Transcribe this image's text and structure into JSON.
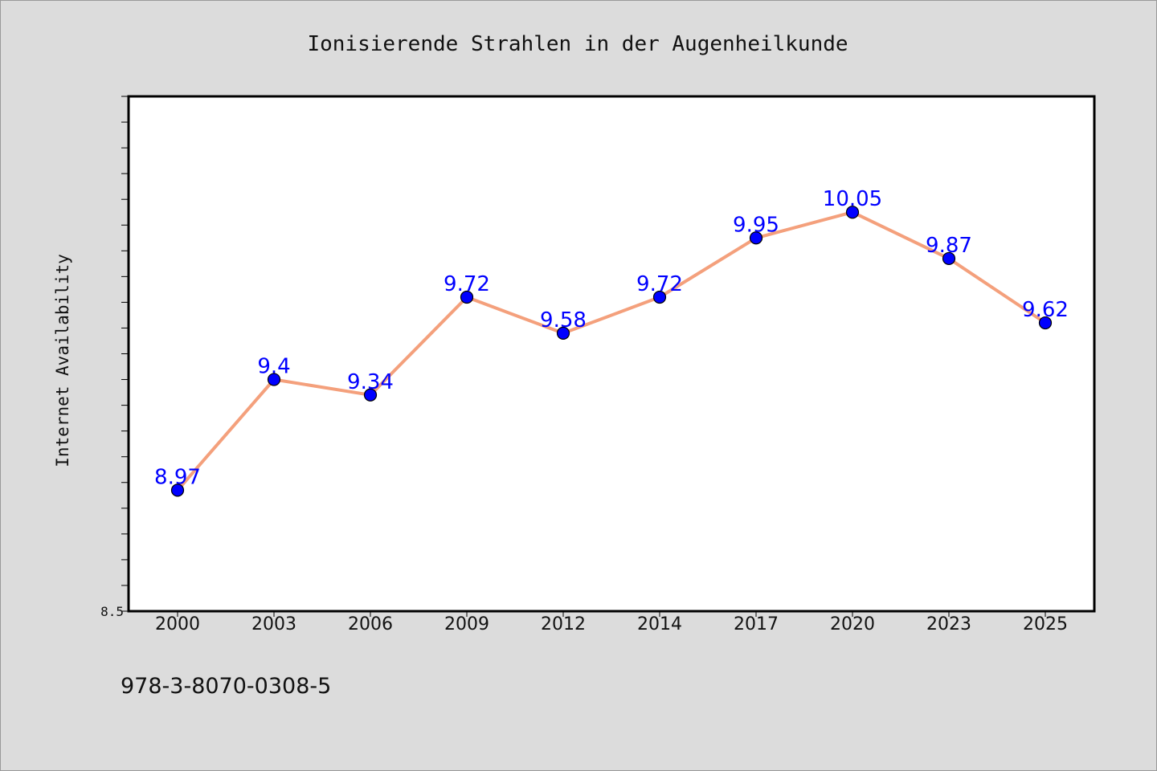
{
  "chart_data": {
    "type": "line",
    "title": "Ionisierende Strahlen in der Augenheilkunde",
    "xlabel": "",
    "ylabel": "Internet Availability",
    "categories": [
      "2000",
      "2003",
      "2006",
      "2009",
      "2012",
      "2014",
      "2017",
      "2020",
      "2023",
      "2025"
    ],
    "series": [
      {
        "values": [
          8.97,
          9.4,
          9.34,
          9.72,
          9.58,
          9.72,
          9.95,
          10.05,
          9.87,
          9.62
        ],
        "labels": [
          "8.97",
          "9.4",
          "9.34",
          "9.72",
          "9.58",
          "9.72",
          "9.95",
          "10.05",
          "9.87",
          "9.62"
        ],
        "line_color": "#f4a07c",
        "marker_color": "#0000ff"
      }
    ],
    "ylim": [
      8.5,
      10.5
    ],
    "ytick_labels": [
      {
        "value": 8.5,
        "label": "8.5"
      }
    ],
    "y_minor_step": 0.1,
    "grid": false,
    "legend": "none"
  },
  "footer": {
    "isbn": "978-3-8070-0308-5"
  },
  "colors": {
    "background": "#dcdcdc",
    "plot_background": "#ffffff",
    "axis": "#000000"
  }
}
